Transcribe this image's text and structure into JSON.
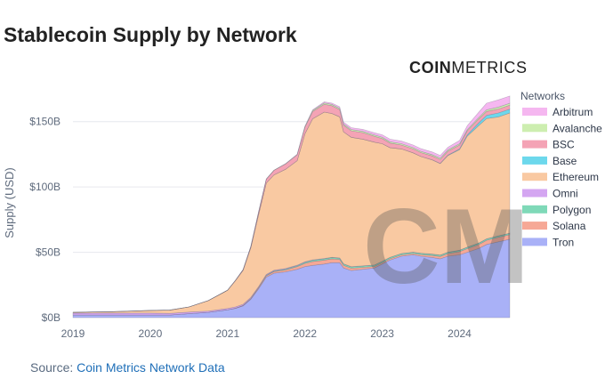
{
  "header": {
    "title": "Stablecoin Supply by Network"
  },
  "brand": {
    "part1": "COIN",
    "part2": "METRICS",
    "watermark": "CM"
  },
  "source": {
    "prefix": "Source: ",
    "link": "Coin Metrics Network Data"
  },
  "chart_data": {
    "type": "area",
    "stacked": true,
    "ylabel": "Supply (USD)",
    "xlabel": "",
    "xlim": [
      2019.0,
      2024.65
    ],
    "ylim": [
      0,
      175
    ],
    "y_ticks": [
      0,
      50,
      100,
      150
    ],
    "y_tick_labels": [
      "$0B",
      "$50B",
      "$100B",
      "$150B"
    ],
    "x_ticks": [
      2019,
      2020,
      2021,
      2022,
      2023,
      2024
    ],
    "x_tick_labels": [
      "2019",
      "2020",
      "2021",
      "2022",
      "2023",
      "2024"
    ],
    "legend_title": "Networks",
    "legend_position": "right",
    "x": [
      2019.0,
      2019.25,
      2019.5,
      2019.75,
      2020.0,
      2020.25,
      2020.5,
      2020.75,
      2021.0,
      2021.1,
      2021.2,
      2021.3,
      2021.4,
      2021.5,
      2021.6,
      2021.75,
      2021.9,
      2022.0,
      2022.1,
      2022.25,
      2022.35,
      2022.45,
      2022.5,
      2022.6,
      2022.75,
      2022.9,
      2023.0,
      2023.1,
      2023.25,
      2023.4,
      2023.5,
      2023.65,
      2023.75,
      2023.85,
      2024.0,
      2024.1,
      2024.25,
      2024.35,
      2024.5,
      2024.65
    ],
    "series": [
      {
        "name": "Tron",
        "color": "#a9b1f7",
        "values": [
          2,
          2,
          2,
          2,
          2,
          2,
          3,
          4,
          6,
          7,
          9,
          14,
          22,
          31,
          34,
          35,
          37,
          39,
          40,
          41,
          42,
          42,
          38,
          36,
          37,
          38,
          41,
          44,
          47,
          48,
          47,
          46,
          45,
          47,
          48,
          50,
          53,
          56,
          58,
          60
        ]
      },
      {
        "name": "Solana",
        "color": "#f6a896",
        "values": [
          0,
          0,
          0,
          0,
          0,
          0,
          0,
          0,
          0,
          0.2,
          0.3,
          0.5,
          0.8,
          1,
          1.2,
          1.5,
          2,
          2.5,
          3,
          3,
          3,
          2.5,
          2,
          1.8,
          1.5,
          1.2,
          1,
          1,
          1,
          1,
          1.2,
          1.5,
          1.8,
          2,
          2.5,
          2.8,
          3,
          3.2,
          3.5,
          3.5
        ]
      },
      {
        "name": "Polygon",
        "color": "#7fd9b8",
        "values": [
          0,
          0,
          0,
          0,
          0,
          0,
          0,
          0,
          0,
          0,
          0.1,
          0.2,
          0.3,
          0.4,
          0.5,
          0.6,
          0.7,
          0.8,
          0.9,
          1,
          1,
          1,
          1,
          1,
          1,
          1,
          1,
          1,
          1,
          1,
          1,
          1,
          1,
          1,
          1,
          1,
          1,
          1,
          1,
          1
        ]
      },
      {
        "name": "Omni",
        "color": "#d4a6f1",
        "values": [
          1.5,
          1.5,
          1.5,
          1.5,
          1.5,
          1.2,
          1.2,
          1,
          1,
          1,
          0.8,
          0.8,
          0.6,
          0.6,
          0.5,
          0.5,
          0.4,
          0.4,
          0.3,
          0.3,
          0.2,
          0.2,
          0.2,
          0.2,
          0.1,
          0.1,
          0.1,
          0.1,
          0.1,
          0.1,
          0.1,
          0.1,
          0.1,
          0.1,
          0.1,
          0.1,
          0.1,
          0.1,
          0.1,
          0.1
        ]
      },
      {
        "name": "Ethereum",
        "color": "#f9c9a2",
        "values": [
          0.5,
          0.8,
          1,
          1.5,
          2,
          2.5,
          4,
          8,
          14,
          20,
          26,
          38,
          55,
          70,
          73,
          76,
          80,
          98,
          108,
          112,
          110,
          108,
          101,
          99,
          97,
          94,
          90,
          84,
          80,
          76,
          74,
          72,
          70,
          74,
          77,
          85,
          90,
          92,
          91,
          92
        ]
      },
      {
        "name": "Base",
        "color": "#6dd8ec",
        "values": [
          0,
          0,
          0,
          0,
          0,
          0,
          0,
          0,
          0,
          0,
          0,
          0,
          0,
          0,
          0,
          0,
          0,
          0,
          0,
          0,
          0,
          0,
          0,
          0,
          0,
          0,
          0,
          0,
          0,
          0,
          0,
          0.1,
          0.2,
          0.3,
          0.5,
          1,
          2,
          2.5,
          3,
          3
        ]
      },
      {
        "name": "BSC",
        "color": "#f4a3b5",
        "values": [
          0,
          0,
          0,
          0,
          0,
          0,
          0,
          0,
          0,
          0.2,
          0.5,
          1,
          2,
          3,
          3.5,
          4,
          4.5,
          5,
          5.5,
          6,
          6,
          5.5,
          5,
          5,
          5,
          4.5,
          4,
          3.5,
          3,
          3,
          3,
          3,
          3,
          3,
          3,
          3,
          3,
          3,
          3,
          3
        ]
      },
      {
        "name": "Avalanche",
        "color": "#cdeeb0",
        "values": [
          0,
          0,
          0,
          0,
          0,
          0,
          0,
          0,
          0,
          0,
          0,
          0,
          0,
          0,
          0.1,
          0.2,
          0.3,
          0.5,
          0.8,
          1,
          1,
          1,
          1,
          1,
          1,
          1,
          1,
          1,
          1,
          1,
          1,
          1,
          1,
          1,
          1,
          1,
          1.2,
          1.3,
          1.5,
          1.5
        ]
      },
      {
        "name": "Arbitrum",
        "color": "#f5b7f0",
        "values": [
          0,
          0,
          0,
          0,
          0,
          0,
          0,
          0,
          0,
          0,
          0,
          0,
          0,
          0,
          0,
          0.1,
          0.2,
          0.3,
          0.5,
          0.8,
          1,
          1.2,
          1.3,
          1.4,
          1.5,
          1.6,
          1.8,
          2,
          2,
          2,
          2,
          2,
          2,
          2,
          2.5,
          3,
          4,
          5,
          5.5,
          5.5
        ]
      }
    ]
  }
}
